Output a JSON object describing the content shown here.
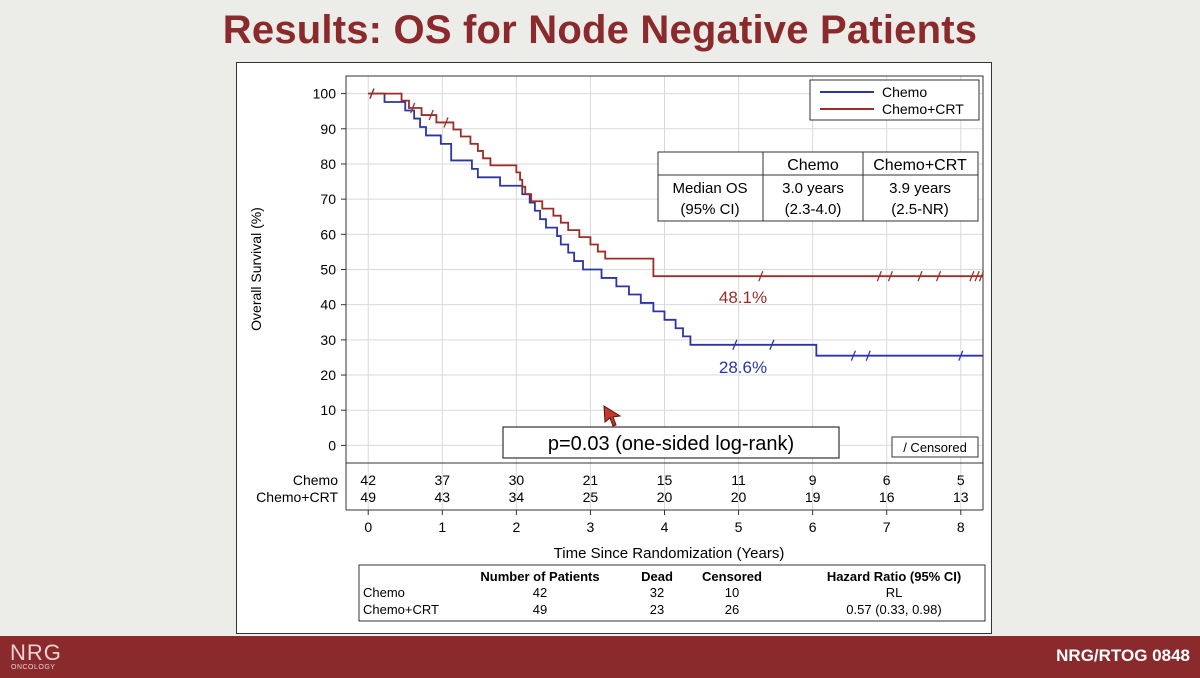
{
  "slide": {
    "title": "Results: OS for Node Negative Patients",
    "footer_label": "NRG/RTOG 0848",
    "logo_main": "NRG",
    "logo_sub": "ONCOLOGY"
  },
  "colors": {
    "title": "#8b2a2c",
    "chemo": "#2a36a8",
    "chemo_crt": "#9b2d26",
    "grid": "#d9d9d9"
  },
  "chart_data": {
    "type": "line",
    "subtype": "kaplan-meier",
    "xlabel": "Time Since Randomization (Years)",
    "ylabel": "Overall Survival (%)",
    "xlim": [
      -0.3,
      8.3
    ],
    "ylim": [
      -5,
      105
    ],
    "x_ticks": [
      0,
      1,
      2,
      3,
      4,
      5,
      6,
      7,
      8
    ],
    "y_ticks": [
      0,
      10,
      20,
      30,
      40,
      50,
      60,
      70,
      80,
      90,
      100
    ],
    "grid": true,
    "legend_position": "top-right",
    "series": [
      {
        "name": "Chemo",
        "color": "#2a36a8",
        "steps": [
          [
            0,
            100
          ],
          [
            0.22,
            97.6
          ],
          [
            0.5,
            95.2
          ],
          [
            0.62,
            92.9
          ],
          [
            0.7,
            90.5
          ],
          [
            0.78,
            88.1
          ],
          [
            0.98,
            85.7
          ],
          [
            1.12,
            81.0
          ],
          [
            1.4,
            78.6
          ],
          [
            1.48,
            76.2
          ],
          [
            1.78,
            73.8
          ],
          [
            2.08,
            71.4
          ],
          [
            2.18,
            69.0
          ],
          [
            2.25,
            66.7
          ],
          [
            2.32,
            64.3
          ],
          [
            2.4,
            61.9
          ],
          [
            2.55,
            59.5
          ],
          [
            2.6,
            57.1
          ],
          [
            2.7,
            54.8
          ],
          [
            2.78,
            52.4
          ],
          [
            2.9,
            50.0
          ],
          [
            3.15,
            47.6
          ],
          [
            3.35,
            45.2
          ],
          [
            3.52,
            42.9
          ],
          [
            3.68,
            40.5
          ],
          [
            3.85,
            38.1
          ],
          [
            4.0,
            35.7
          ],
          [
            4.15,
            33.3
          ],
          [
            4.25,
            31.0
          ],
          [
            4.35,
            28.6
          ],
          [
            6.05,
            25.5
          ],
          [
            8.3,
            25.5
          ]
        ],
        "censor_times": [
          0.05,
          4.95,
          5.45,
          6.55,
          6.75,
          8.0
        ],
        "median_label": "28.6%"
      },
      {
        "name": "Chemo+CRT",
        "color": "#9b2d26",
        "steps": [
          [
            0,
            100
          ],
          [
            0.45,
            98.0
          ],
          [
            0.55,
            95.9
          ],
          [
            0.72,
            93.9
          ],
          [
            0.92,
            91.8
          ],
          [
            1.15,
            89.8
          ],
          [
            1.25,
            87.8
          ],
          [
            1.38,
            85.7
          ],
          [
            1.48,
            83.7
          ],
          [
            1.55,
            81.6
          ],
          [
            1.65,
            79.6
          ],
          [
            2.0,
            77.6
          ],
          [
            2.05,
            75.5
          ],
          [
            2.08,
            73.5
          ],
          [
            2.12,
            71.4
          ],
          [
            2.2,
            69.4
          ],
          [
            2.35,
            67.3
          ],
          [
            2.5,
            65.3
          ],
          [
            2.6,
            63.3
          ],
          [
            2.7,
            61.2
          ],
          [
            2.85,
            59.2
          ],
          [
            3.0,
            57.1
          ],
          [
            3.1,
            55.1
          ],
          [
            3.2,
            53.1
          ],
          [
            3.85,
            48.1
          ],
          [
            8.3,
            48.1
          ]
        ],
        "censor_times": [
          0.05,
          0.6,
          0.85,
          1.05,
          5.3,
          6.9,
          7.05,
          7.45,
          7.7,
          8.15,
          8.22,
          8.28
        ],
        "median_label": "48.1%"
      }
    ],
    "median_table": {
      "columns": [
        "",
        "Chemo",
        "Chemo+CRT"
      ],
      "rows": [
        [
          "Median OS",
          "3.0 years",
          "3.9 years"
        ],
        [
          "(95% CI)",
          "(2.3-4.0)",
          "(2.5-NR)"
        ]
      ]
    },
    "annotation_pvalue": "p=0.03 (one-sided log-rank)",
    "censor_legend": "/ Censored",
    "at_risk": {
      "groups": [
        "Chemo",
        "Chemo+CRT"
      ],
      "times": [
        0,
        1,
        2,
        3,
        4,
        5,
        6,
        7,
        8
      ],
      "values": [
        [
          42,
          37,
          30,
          21,
          15,
          11,
          9,
          6,
          5
        ],
        [
          49,
          43,
          34,
          25,
          20,
          20,
          19,
          16,
          13
        ]
      ]
    },
    "summary_table": {
      "columns": [
        "",
        "Number of Patients",
        "Dead",
        "Censored",
        "Hazard Ratio (95% CI)"
      ],
      "rows": [
        [
          "Chemo",
          "42",
          "32",
          "10",
          "RL"
        ],
        [
          "Chemo+CRT",
          "49",
          "23",
          "26",
          "0.57 (0.33, 0.98)"
        ]
      ]
    }
  }
}
